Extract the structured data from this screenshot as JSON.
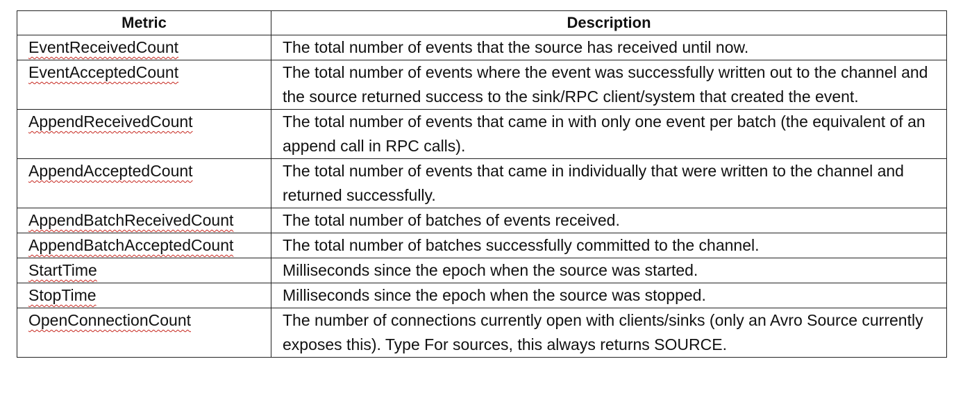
{
  "table": {
    "headers": {
      "metric": "Metric",
      "description": "Description"
    },
    "rows": [
      {
        "metric": "EventReceivedCount",
        "description": "The total number of events that the source has received until now."
      },
      {
        "metric": "EventAcceptedCount",
        "description": "The total number of events where the event was successfully written out to the channel and the source returned success to the sink/RPC client/system that created the event."
      },
      {
        "metric": "AppendReceivedCount",
        "description": "The total number of events that came in with only one event per batch (the equivalent of an append call in RPC calls)."
      },
      {
        "metric": "AppendAcceptedCount",
        "description": "The total number of events that came in individually that were written to the channel and returned successfully."
      },
      {
        "metric": "AppendBatchReceivedCount",
        "description": "The total number of batches of events received."
      },
      {
        "metric": "AppendBatchAcceptedCount",
        "description": "The total number of batches successfully committed to the channel."
      },
      {
        "metric": "StartTime",
        "description": "Milliseconds since the epoch when the source was started."
      },
      {
        "metric": "StopTime",
        "description": "Milliseconds since the epoch when the source was stopped."
      },
      {
        "metric": "OpenConnectionCount",
        "description": "The number of connections currently open with clients/sinks (only an Avro Source currently exposes this). Type For sources, this always returns SOURCE."
      }
    ]
  },
  "colors": {
    "border": "#222222",
    "spellcheck_underline": "#c6261e",
    "text": "#111111",
    "background": "#ffffff"
  }
}
